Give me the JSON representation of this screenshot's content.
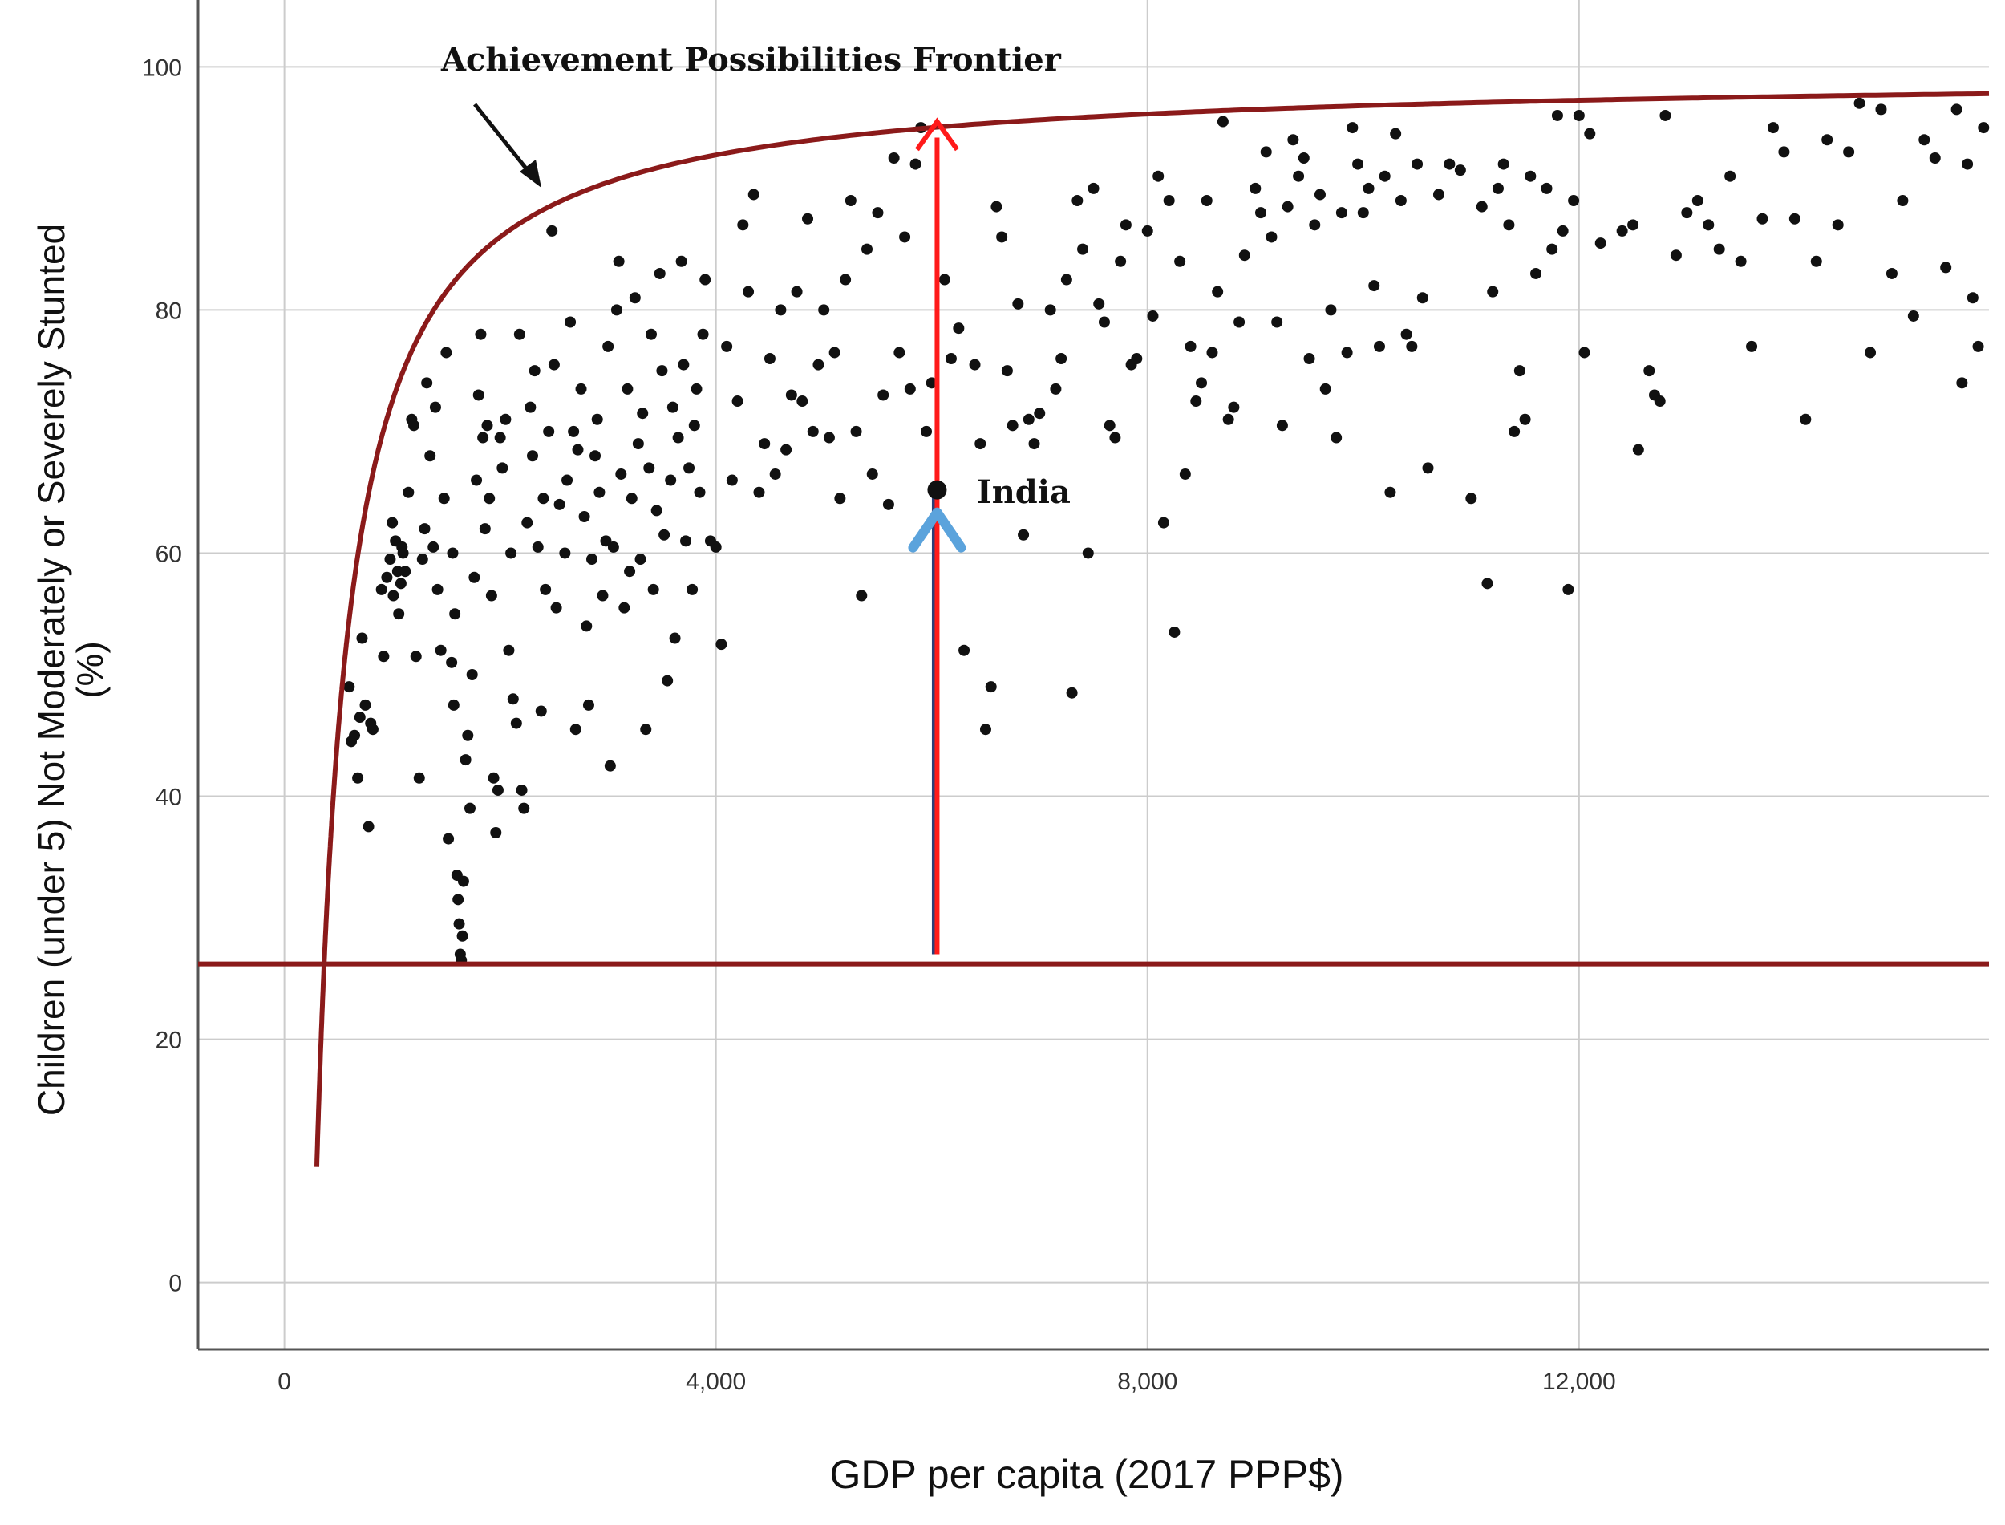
{
  "chart_data": {
    "type": "scatter",
    "xlabel": "GDP per capita (2017 PPP$)",
    "ylabel_line1": "Children (under 5) Not Moderately or Severely Stunted",
    "ylabel_line2": "(%)",
    "xlim": [
      -800,
      15800
    ],
    "ylim": [
      -5.5,
      105.5
    ],
    "x_ticks": [
      0,
      4000,
      8000,
      12000
    ],
    "x_tick_labels": [
      "0",
      "4,000",
      "8,000",
      "12,000"
    ],
    "y_ticks": [
      0,
      20,
      40,
      60,
      80,
      100
    ],
    "y_tick_labels": [
      "0",
      "20",
      "40",
      "60",
      "80",
      "100"
    ],
    "grid": true,
    "colors": {
      "frontier": "#8b1a1a",
      "floor_line": "#8b1a1a",
      "up_arrow": "#ff1a1a",
      "india_chevron": "#5ba3dc",
      "points": "#111111",
      "grid": "#cccccc"
    },
    "frontier": {
      "label": "Achievement Possibilities Frontier",
      "a": 99.5,
      "b": 27000,
      "x0": 0
    },
    "floor_line_y": 26.2,
    "india": {
      "label": "India",
      "x": 6050,
      "y": 65.2,
      "arrow_from_y": 27,
      "arrow_to_y": 95.5
    },
    "points": [
      [
        600,
        49
      ],
      [
        620,
        44.5
      ],
      [
        650,
        45
      ],
      [
        680,
        41.5
      ],
      [
        700,
        46.5
      ],
      [
        720,
        53
      ],
      [
        750,
        47.5
      ],
      [
        780,
        37.5
      ],
      [
        800,
        46
      ],
      [
        820,
        45.5
      ],
      [
        900,
        57
      ],
      [
        920,
        51.5
      ],
      [
        950,
        58
      ],
      [
        980,
        59.5
      ],
      [
        1000,
        62.5
      ],
      [
        1010,
        56.5
      ],
      [
        1030,
        61
      ],
      [
        1050,
        58.5
      ],
      [
        1060,
        55
      ],
      [
        1080,
        57.5
      ],
      [
        1090,
        60.5
      ],
      [
        1100,
        60
      ],
      [
        1120,
        58.5
      ],
      [
        1150,
        65
      ],
      [
        1180,
        71
      ],
      [
        1200,
        70.5
      ],
      [
        1220,
        51.5
      ],
      [
        1250,
        41.5
      ],
      [
        1280,
        59.5
      ],
      [
        1300,
        62
      ],
      [
        1320,
        74
      ],
      [
        1350,
        68
      ],
      [
        1380,
        60.5
      ],
      [
        1400,
        72
      ],
      [
        1420,
        57
      ],
      [
        1450,
        52
      ],
      [
        1480,
        64.5
      ],
      [
        1500,
        76.5
      ],
      [
        1520,
        36.5
      ],
      [
        1550,
        51
      ],
      [
        1560,
        60
      ],
      [
        1570,
        47.5
      ],
      [
        1580,
        55
      ],
      [
        1600,
        33.5
      ],
      [
        1610,
        31.5
      ],
      [
        1620,
        29.5
      ],
      [
        1630,
        27
      ],
      [
        1640,
        26.5
      ],
      [
        1650,
        28.5
      ],
      [
        1660,
        33
      ],
      [
        1680,
        43
      ],
      [
        1700,
        45
      ],
      [
        1720,
        39
      ],
      [
        1740,
        50
      ],
      [
        1760,
        58
      ],
      [
        1780,
        66
      ],
      [
        1800,
        73
      ],
      [
        1820,
        78
      ],
      [
        1840,
        69.5
      ],
      [
        1860,
        62
      ],
      [
        1880,
        70.5
      ],
      [
        1900,
        64.5
      ],
      [
        1920,
        56.5
      ],
      [
        1940,
        41.5
      ],
      [
        1960,
        37
      ],
      [
        1980,
        40.5
      ],
      [
        2000,
        69.5
      ],
      [
        2020,
        67
      ],
      [
        2050,
        71
      ],
      [
        2080,
        52
      ],
      [
        2100,
        60
      ],
      [
        2120,
        48
      ],
      [
        2150,
        46
      ],
      [
        2180,
        78
      ],
      [
        2200,
        40.5
      ],
      [
        2220,
        39
      ],
      [
        2250,
        62.5
      ],
      [
        2280,
        72
      ],
      [
        2300,
        68
      ],
      [
        2320,
        75
      ],
      [
        2350,
        60.5
      ],
      [
        2380,
        47
      ],
      [
        2400,
        64.5
      ],
      [
        2420,
        57
      ],
      [
        2450,
        70
      ],
      [
        2480,
        86.5
      ],
      [
        2500,
        75.5
      ],
      [
        2520,
        55.5
      ],
      [
        2550,
        64
      ],
      [
        2600,
        60
      ],
      [
        2620,
        66
      ],
      [
        2650,
        79
      ],
      [
        2680,
        70
      ],
      [
        2700,
        45.5
      ],
      [
        2720,
        68.5
      ],
      [
        2750,
        73.5
      ],
      [
        2780,
        63
      ],
      [
        2800,
        54
      ],
      [
        2820,
        47.5
      ],
      [
        2850,
        59.5
      ],
      [
        2880,
        68
      ],
      [
        2900,
        71
      ],
      [
        2920,
        65
      ],
      [
        2950,
        56.5
      ],
      [
        2980,
        61
      ],
      [
        3000,
        77
      ],
      [
        3020,
        42.5
      ],
      [
        3050,
        60.5
      ],
      [
        3080,
        80
      ],
      [
        3100,
        84
      ],
      [
        3120,
        66.5
      ],
      [
        3150,
        55.5
      ],
      [
        3180,
        73.5
      ],
      [
        3200,
        58.5
      ],
      [
        3220,
        64.5
      ],
      [
        3250,
        81
      ],
      [
        3280,
        69
      ],
      [
        3300,
        59.5
      ],
      [
        3320,
        71.5
      ],
      [
        3350,
        45.5
      ],
      [
        3380,
        67
      ],
      [
        3400,
        78
      ],
      [
        3420,
        57
      ],
      [
        3450,
        63.5
      ],
      [
        3480,
        83
      ],
      [
        3500,
        75
      ],
      [
        3520,
        61.5
      ],
      [
        3550,
        49.5
      ],
      [
        3580,
        66
      ],
      [
        3600,
        72
      ],
      [
        3620,
        53
      ],
      [
        3650,
        69.5
      ],
      [
        3680,
        84
      ],
      [
        3700,
        75.5
      ],
      [
        3720,
        61
      ],
      [
        3750,
        67
      ],
      [
        3780,
        57
      ],
      [
        3800,
        70.5
      ],
      [
        3820,
        73.5
      ],
      [
        3850,
        65
      ],
      [
        3880,
        78
      ],
      [
        3900,
        82.5
      ],
      [
        3950,
        61
      ],
      [
        4000,
        60.5
      ],
      [
        4050,
        52.5
      ],
      [
        4100,
        77
      ],
      [
        4150,
        66
      ],
      [
        4200,
        72.5
      ],
      [
        4250,
        87
      ],
      [
        4300,
        81.5
      ],
      [
        4350,
        89.5
      ],
      [
        4400,
        65
      ],
      [
        4450,
        69
      ],
      [
        4500,
        76
      ],
      [
        4550,
        66.5
      ],
      [
        4600,
        80
      ],
      [
        4650,
        68.5
      ],
      [
        4700,
        73
      ],
      [
        4750,
        81.5
      ],
      [
        4800,
        72.5
      ],
      [
        4850,
        87.5
      ],
      [
        4900,
        70
      ],
      [
        4950,
        75.5
      ],
      [
        5000,
        80
      ],
      [
        5050,
        69.5
      ],
      [
        5100,
        76.5
      ],
      [
        5150,
        64.5
      ],
      [
        5200,
        82.5
      ],
      [
        5250,
        89
      ],
      [
        5300,
        70
      ],
      [
        5350,
        56.5
      ],
      [
        5400,
        85
      ],
      [
        5450,
        66.5
      ],
      [
        5500,
        88
      ],
      [
        5550,
        73
      ],
      [
        5600,
        64
      ],
      [
        5650,
        92.5
      ],
      [
        5700,
        76.5
      ],
      [
        5750,
        86
      ],
      [
        5800,
        73.5
      ],
      [
        5850,
        92
      ],
      [
        5900,
        95
      ],
      [
        5950,
        70
      ],
      [
        6000,
        74
      ],
      [
        6120,
        82.5
      ],
      [
        6180,
        76
      ],
      [
        6250,
        78.5
      ],
      [
        6300,
        52
      ],
      [
        6400,
        75.5
      ],
      [
        6450,
        69
      ],
      [
        6500,
        45.5
      ],
      [
        6550,
        49
      ],
      [
        6600,
        88.5
      ],
      [
        6650,
        86
      ],
      [
        6700,
        75
      ],
      [
        6750,
        70.5
      ],
      [
        6800,
        80.5
      ],
      [
        6850,
        61.5
      ],
      [
        6900,
        71
      ],
      [
        6950,
        69
      ],
      [
        7000,
        71.5
      ],
      [
        7100,
        80
      ],
      [
        7150,
        73.5
      ],
      [
        7200,
        76
      ],
      [
        7250,
        82.5
      ],
      [
        7300,
        48.5
      ],
      [
        7350,
        89
      ],
      [
        7400,
        85
      ],
      [
        7450,
        60
      ],
      [
        7500,
        90
      ],
      [
        7550,
        80.5
      ],
      [
        7600,
        79
      ],
      [
        7650,
        70.5
      ],
      [
        7700,
        69.5
      ],
      [
        7750,
        84
      ],
      [
        7800,
        87
      ],
      [
        7850,
        75.5
      ],
      [
        7900,
        76
      ],
      [
        8000,
        86.5
      ],
      [
        8050,
        79.5
      ],
      [
        8100,
        91
      ],
      [
        8150,
        62.5
      ],
      [
        8200,
        89
      ],
      [
        8250,
        53.5
      ],
      [
        8300,
        84
      ],
      [
        8350,
        66.5
      ],
      [
        8400,
        77
      ],
      [
        8450,
        72.5
      ],
      [
        8500,
        74
      ],
      [
        8550,
        89
      ],
      [
        8600,
        76.5
      ],
      [
        8650,
        81.5
      ],
      [
        8700,
        95.5
      ],
      [
        8750,
        71
      ],
      [
        8800,
        72
      ],
      [
        8850,
        79
      ],
      [
        8900,
        84.5
      ],
      [
        9000,
        90
      ],
      [
        9050,
        88
      ],
      [
        9100,
        93
      ],
      [
        9150,
        86
      ],
      [
        9200,
        79
      ],
      [
        9250,
        70.5
      ],
      [
        9300,
        88.5
      ],
      [
        9350,
        94
      ],
      [
        9400,
        91
      ],
      [
        9450,
        92.5
      ],
      [
        9500,
        76
      ],
      [
        9550,
        87
      ],
      [
        9600,
        89.5
      ],
      [
        9650,
        73.5
      ],
      [
        9700,
        80
      ],
      [
        9750,
        69.5
      ],
      [
        9800,
        88
      ],
      [
        9850,
        76.5
      ],
      [
        9900,
        95
      ],
      [
        9950,
        92
      ],
      [
        10000,
        88
      ],
      [
        10050,
        90
      ],
      [
        10100,
        82
      ],
      [
        10150,
        77
      ],
      [
        10200,
        91
      ],
      [
        10250,
        65
      ],
      [
        10300,
        94.5
      ],
      [
        10350,
        89
      ],
      [
        10400,
        78
      ],
      [
        10450,
        77
      ],
      [
        10500,
        92
      ],
      [
        10550,
        81
      ],
      [
        10600,
        67
      ],
      [
        10700,
        89.5
      ],
      [
        10800,
        92
      ],
      [
        10900,
        91.5
      ],
      [
        11000,
        64.5
      ],
      [
        11100,
        88.5
      ],
      [
        11150,
        57.5
      ],
      [
        11200,
        81.5
      ],
      [
        11250,
        90
      ],
      [
        11300,
        92
      ],
      [
        11350,
        87
      ],
      [
        11400,
        70
      ],
      [
        11450,
        75
      ],
      [
        11500,
        71
      ],
      [
        11550,
        91
      ],
      [
        11600,
        83
      ],
      [
        11700,
        90
      ],
      [
        11750,
        85
      ],
      [
        11800,
        96
      ],
      [
        11850,
        86.5
      ],
      [
        11900,
        57
      ],
      [
        11950,
        89
      ],
      [
        12000,
        96
      ],
      [
        12050,
        76.5
      ],
      [
        12100,
        94.5
      ],
      [
        12200,
        85.5
      ],
      [
        12400,
        86.5
      ],
      [
        12500,
        87
      ],
      [
        12550,
        68.5
      ],
      [
        12650,
        75
      ],
      [
        12700,
        73
      ],
      [
        12750,
        72.5
      ],
      [
        12800,
        96
      ],
      [
        12900,
        84.5
      ],
      [
        13000,
        88
      ],
      [
        13100,
        89
      ],
      [
        13200,
        87
      ],
      [
        13300,
        85
      ],
      [
        13400,
        91
      ],
      [
        13500,
        84
      ],
      [
        13600,
        77
      ],
      [
        13700,
        87.5
      ],
      [
        13800,
        95
      ],
      [
        13900,
        93
      ],
      [
        14000,
        87.5
      ],
      [
        14100,
        71
      ],
      [
        14200,
        84
      ],
      [
        14300,
        94
      ],
      [
        14400,
        87
      ],
      [
        14500,
        93
      ],
      [
        14600,
        97
      ],
      [
        14700,
        76.5
      ],
      [
        14800,
        96.5
      ],
      [
        14900,
        83
      ],
      [
        15000,
        89
      ],
      [
        15100,
        79.5
      ],
      [
        15200,
        94
      ],
      [
        15300,
        92.5
      ],
      [
        15400,
        83.5
      ],
      [
        15500,
        96.5
      ],
      [
        15550,
        74
      ],
      [
        15600,
        92
      ],
      [
        15650,
        81
      ],
      [
        15700,
        77
      ],
      [
        15750,
        95
      ]
    ]
  }
}
